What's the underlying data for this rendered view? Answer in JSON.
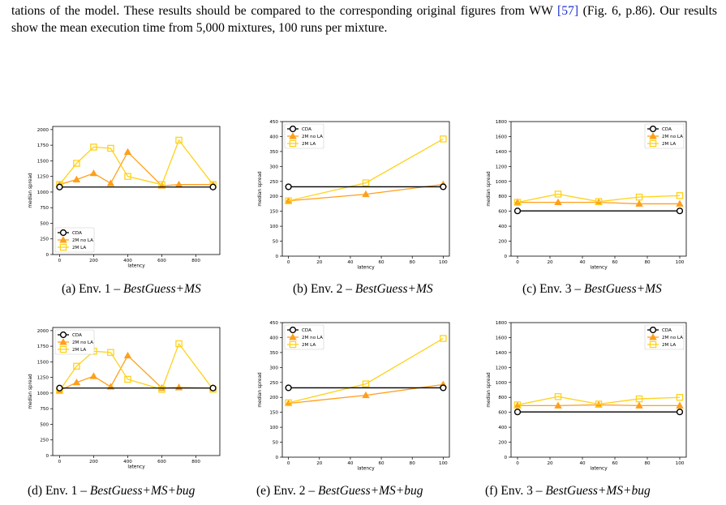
{
  "paragraph": {
    "part1": "tations of the model. These results should be compared to the corresponding original figures from WW ",
    "cite": "[57]",
    "part2": " (Fig. 6, p.86). Our results show the mean execution time from 5,000 mixtures, 100 runs per mixture."
  },
  "colors": {
    "CDA": "#000000",
    "2M no LA": "#ff9f1a",
    "2M LA": "#ffd21a"
  },
  "chart_data": [
    {
      "id": "a",
      "type": "line",
      "caption_prefix": "(a) Env. 1 – ",
      "caption_italic": "BestGuess+MS",
      "xlabel": "latency",
      "ylabel": "median spread",
      "xlim": [
        -40,
        940
      ],
      "ylim": [
        0,
        2050
      ],
      "xticks": [
        0,
        200,
        400,
        600,
        800
      ],
      "yticks": [
        0,
        250,
        500,
        750,
        1000,
        1250,
        1500,
        1750,
        2000
      ],
      "legend_position": "bottom-left",
      "series": [
        {
          "name": "CDA",
          "marker": "circle",
          "x": [
            0,
            900
          ],
          "y": [
            1080,
            1080
          ]
        },
        {
          "name": "2M no LA",
          "marker": "triangle",
          "x": [
            0,
            100,
            200,
            300,
            400,
            600,
            700,
            900
          ],
          "y": [
            1120,
            1200,
            1300,
            1140,
            1640,
            1100,
            1120,
            1120
          ]
        },
        {
          "name": "2M LA",
          "marker": "square",
          "x": [
            0,
            100,
            200,
            300,
            400,
            600,
            700,
            900
          ],
          "y": [
            1120,
            1460,
            1720,
            1700,
            1250,
            1120,
            1830,
            1120
          ]
        }
      ]
    },
    {
      "id": "b",
      "type": "line",
      "caption_prefix": "(b) Env. 2 – ",
      "caption_italic": "BestGuess+MS",
      "xlabel": "latency",
      "ylabel": "median spread",
      "xlim": [
        -4,
        104
      ],
      "ylim": [
        0,
        450
      ],
      "xticks": [
        0,
        20,
        40,
        60,
        80,
        100
      ],
      "yticks": [
        0,
        50,
        100,
        150,
        200,
        250,
        300,
        350,
        400,
        450
      ],
      "legend_position": "top-left",
      "series": [
        {
          "name": "CDA",
          "marker": "circle",
          "x": [
            0,
            100
          ],
          "y": [
            232,
            232
          ]
        },
        {
          "name": "2M no LA",
          "marker": "triangle",
          "x": [
            0,
            50,
            100
          ],
          "y": [
            185,
            207,
            240
          ]
        },
        {
          "name": "2M LA",
          "marker": "square",
          "x": [
            0,
            50,
            100
          ],
          "y": [
            185,
            245,
            392
          ]
        }
      ]
    },
    {
      "id": "c",
      "type": "line",
      "caption_prefix": "(c) Env. 3 – ",
      "caption_italic": "BestGuess+MS",
      "xlabel": "latency",
      "ylabel": "median spread",
      "xlim": [
        -4,
        104
      ],
      "ylim": [
        0,
        1800
      ],
      "xticks": [
        0,
        20,
        40,
        60,
        80,
        100
      ],
      "yticks": [
        0,
        200,
        400,
        600,
        800,
        1000,
        1200,
        1400,
        1600,
        1800
      ],
      "legend_position": "top-right",
      "series": [
        {
          "name": "CDA",
          "marker": "circle",
          "x": [
            0,
            100
          ],
          "y": [
            605,
            605
          ]
        },
        {
          "name": "2M no LA",
          "marker": "triangle",
          "x": [
            0,
            25,
            50,
            75,
            100
          ],
          "y": [
            720,
            720,
            720,
            700,
            700
          ]
        },
        {
          "name": "2M LA",
          "marker": "square",
          "x": [
            0,
            25,
            50,
            75,
            100
          ],
          "y": [
            720,
            830,
            730,
            790,
            810
          ]
        }
      ]
    },
    {
      "id": "d",
      "type": "line",
      "caption_prefix": "(d) Env. 1 – ",
      "caption_italic": "BestGuess+MS+bug",
      "xlabel": "latency",
      "ylabel": "median spread",
      "xlim": [
        -40,
        940
      ],
      "ylim": [
        0,
        2050
      ],
      "xticks": [
        0,
        200,
        400,
        600,
        800
      ],
      "yticks": [
        0,
        250,
        500,
        750,
        1000,
        1250,
        1500,
        1750,
        2000
      ],
      "legend_position": "top-left",
      "series": [
        {
          "name": "CDA",
          "marker": "circle",
          "x": [
            0,
            900
          ],
          "y": [
            1080,
            1080
          ]
        },
        {
          "name": "2M no LA",
          "marker": "triangle",
          "x": [
            0,
            100,
            200,
            300,
            400,
            600,
            700,
            900
          ],
          "y": [
            1040,
            1170,
            1270,
            1100,
            1600,
            1080,
            1090,
            1080
          ]
        },
        {
          "name": "2M LA",
          "marker": "square",
          "x": [
            0,
            100,
            200,
            300,
            400,
            600,
            700,
            900
          ],
          "y": [
            1040,
            1430,
            1670,
            1650,
            1220,
            1060,
            1790,
            1060
          ]
        }
      ]
    },
    {
      "id": "e",
      "type": "line",
      "caption_prefix": "(e) Env. 2 – ",
      "caption_italic": "BestGuess+MS+bug",
      "xlabel": "latency",
      "ylabel": "median spread",
      "xlim": [
        -4,
        104
      ],
      "ylim": [
        0,
        450
      ],
      "xticks": [
        0,
        20,
        40,
        60,
        80,
        100
      ],
      "yticks": [
        0,
        50,
        100,
        150,
        200,
        250,
        300,
        350,
        400,
        450
      ],
      "legend_position": "top-left",
      "series": [
        {
          "name": "CDA",
          "marker": "circle",
          "x": [
            0,
            100
          ],
          "y": [
            232,
            232
          ]
        },
        {
          "name": "2M no LA",
          "marker": "triangle",
          "x": [
            0,
            50,
            100
          ],
          "y": [
            180,
            207,
            243
          ]
        },
        {
          "name": "2M LA",
          "marker": "square",
          "x": [
            0,
            50,
            100
          ],
          "y": [
            182,
            245,
            397
          ]
        }
      ]
    },
    {
      "id": "f",
      "type": "line",
      "caption_prefix": "(f) Env. 3 – ",
      "caption_italic": "BestGuess+MS+bug",
      "xlabel": "latency",
      "ylabel": "median spread",
      "xlim": [
        -4,
        104
      ],
      "ylim": [
        0,
        1800
      ],
      "xticks": [
        0,
        20,
        40,
        60,
        80,
        100
      ],
      "yticks": [
        0,
        200,
        400,
        600,
        800,
        1000,
        1200,
        1400,
        1600,
        1800
      ],
      "legend_position": "top-right",
      "series": [
        {
          "name": "CDA",
          "marker": "circle",
          "x": [
            0,
            100
          ],
          "y": [
            605,
            605
          ]
        },
        {
          "name": "2M no LA",
          "marker": "triangle",
          "x": [
            0,
            25,
            50,
            75,
            100
          ],
          "y": [
            690,
            690,
            700,
            690,
            690
          ]
        },
        {
          "name": "2M LA",
          "marker": "square",
          "x": [
            0,
            25,
            50,
            75,
            100
          ],
          "y": [
            700,
            810,
            710,
            780,
            800
          ]
        }
      ]
    }
  ]
}
